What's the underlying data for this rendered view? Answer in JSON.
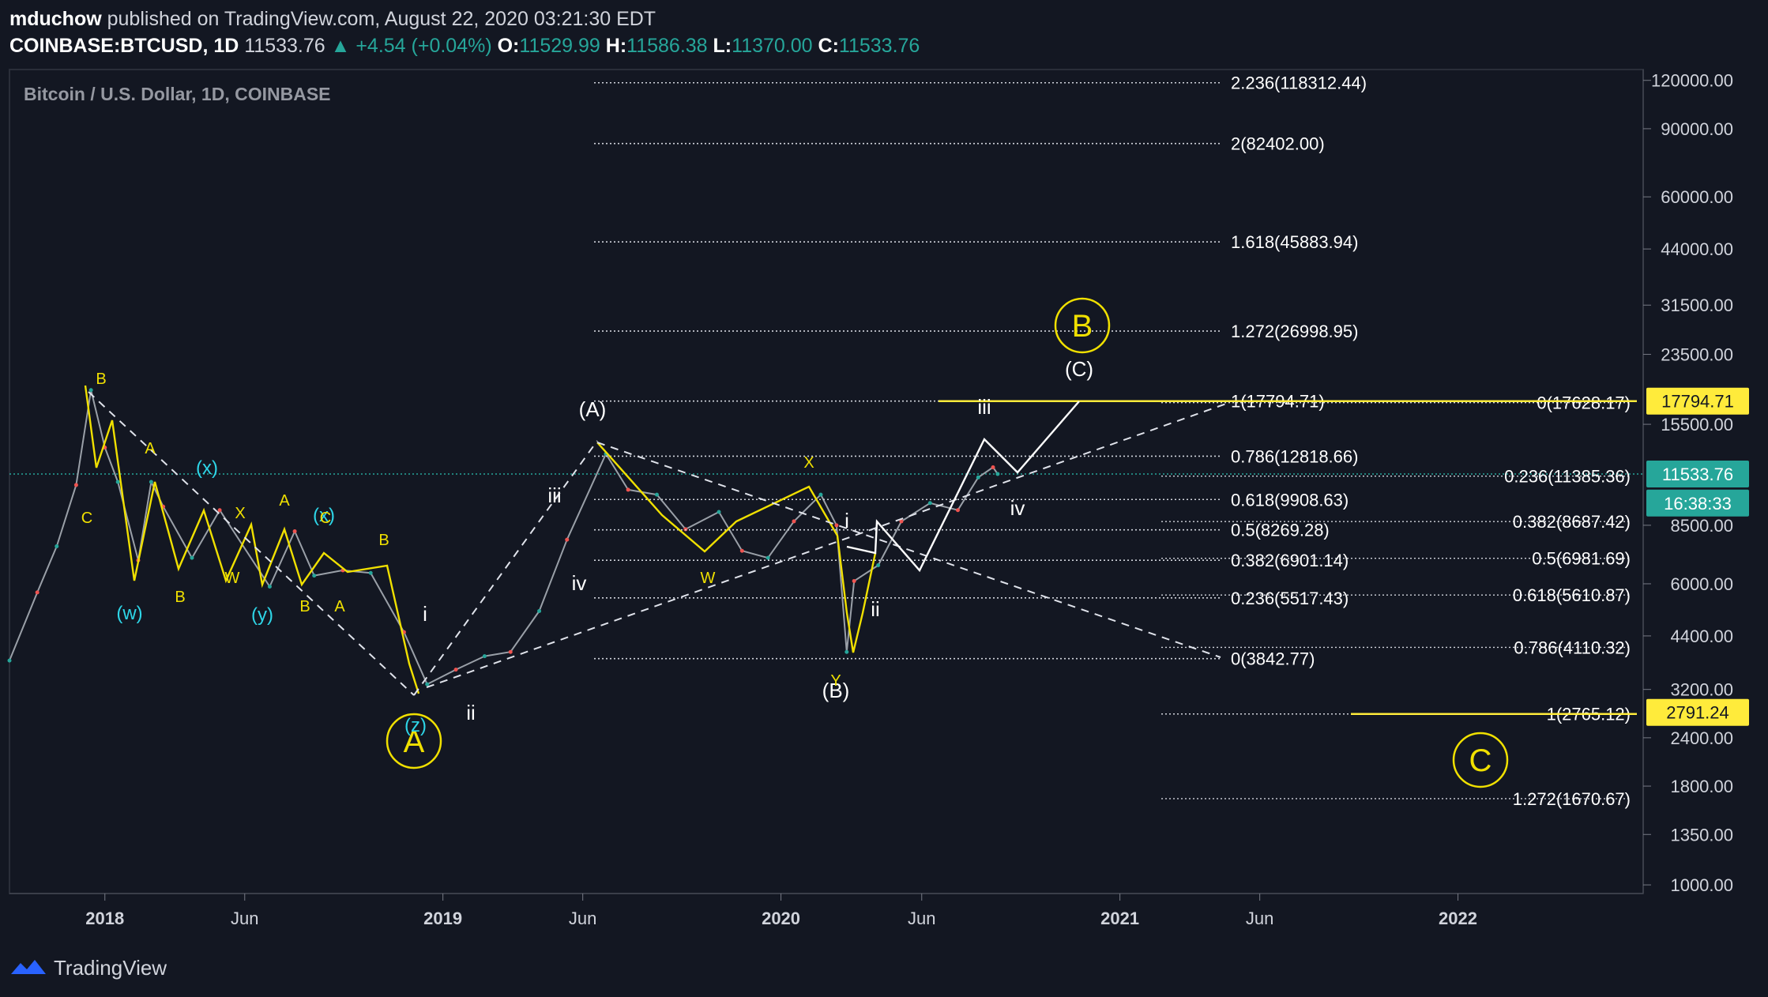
{
  "header": {
    "author": "mduchow",
    "published": "published on TradingView.com, August 22, 2020 03:21:30 EDT",
    "symbol": "COINBASE:BTCUSD, 1D",
    "last": "11533.76",
    "change": "▲ +4.54 (+0.04%)",
    "o_label": "O:",
    "o_value": "11529.99",
    "h_label": "H:",
    "h_value": "11586.38",
    "l_label": "L:",
    "l_value": "11370.00",
    "c_label": "C:",
    "c_value": "11533.76"
  },
  "legend": "Bitcoin / U.S. Dollar, 1D, COINBASE",
  "footer": {
    "brand": "TradingView"
  },
  "colors": {
    "background": "#131722",
    "wave_yellow": "#f0e000",
    "wave_cyan": "#2ed6e8",
    "teal": "#26a69a",
    "highlight": "#ffeb3b"
  },
  "chart_data": {
    "type": "line",
    "title": "Bitcoin / U.S. Dollar, 1D, COINBASE",
    "scale": "log",
    "ylim": [
      950,
      128000
    ],
    "xlim": [
      "2017-09-20",
      "2022-07-20"
    ],
    "x_ticks": [
      "2018",
      "Jun",
      "2019",
      "Jun",
      "2020",
      "Jun",
      "2021",
      "Jun",
      "2022"
    ],
    "x_tick_dates": [
      "2018-01-01",
      "2018-06-01",
      "2019-01-01",
      "2019-06-01",
      "2020-01-01",
      "2020-06-01",
      "2021-01-01",
      "2021-06-01",
      "2022-01-01"
    ],
    "y_ticks": [
      "120000.00",
      "90000.00",
      "60000.00",
      "44000.00",
      "31500.00",
      "23500.00",
      "15500.00",
      "8500.00",
      "6000.00",
      "4400.00",
      "3200.00",
      "2400.00",
      "1800.00",
      "1350.00",
      "1000.00"
    ],
    "y_tick_values": [
      120000,
      90000,
      60000,
      44000,
      31500,
      23500,
      15500,
      8500,
      6000,
      4400,
      3200,
      2400,
      1800,
      1350,
      1000
    ],
    "price_tags": [
      {
        "label": "17794.71",
        "value": 17794.71,
        "style": "yellow"
      },
      {
        "label": "11533.76",
        "value": 11533.76,
        "style": "teal"
      },
      {
        "label": "16:38:33",
        "value": 9700,
        "style": "teal"
      },
      {
        "label": "2791.24",
        "value": 2791.24,
        "style": "yellow"
      }
    ],
    "price_series": {
      "name": "BTCUSD",
      "dates": [
        "2017-09-20",
        "2017-10-20",
        "2017-11-10",
        "2017-12-01",
        "2017-12-17",
        "2018-01-01",
        "2018-01-15",
        "2018-02-06",
        "2018-02-20",
        "2018-03-05",
        "2018-04-05",
        "2018-05-05",
        "2018-06-28",
        "2018-07-25",
        "2018-08-15",
        "2018-09-15",
        "2018-10-15",
        "2018-11-20",
        "2018-12-15",
        "2019-01-15",
        "2019-02-15",
        "2019-03-15",
        "2019-04-15",
        "2019-05-15",
        "2019-06-26",
        "2019-07-20",
        "2019-08-20",
        "2019-09-20",
        "2019-10-26",
        "2019-11-20",
        "2019-12-18",
        "2020-01-15",
        "2020-02-13",
        "2020-03-01",
        "2020-03-12",
        "2020-03-20",
        "2020-04-15",
        "2020-05-10",
        "2020-06-10",
        "2020-07-10",
        "2020-08-01",
        "2020-08-17",
        "2020-08-22"
      ],
      "close": [
        3800,
        5700,
        7500,
        10800,
        19000,
        13500,
        11000,
        6900,
        11000,
        9500,
        7000,
        9300,
        5900,
        8200,
        6300,
        6500,
        6400,
        4500,
        3300,
        3600,
        3900,
        4000,
        5100,
        7800,
        13000,
        10500,
        10200,
        8300,
        9200,
        7300,
        7000,
        8700,
        10200,
        8500,
        4000,
        6100,
        6700,
        8700,
        9700,
        9300,
        11300,
        12000,
        11533.76
      ]
    },
    "fib_levels": [
      {
        "label": "2.236(118312.44)",
        "value": 118312.44
      },
      {
        "label": "2(82402.00)",
        "value": 82402.0
      },
      {
        "label": "1.618(45883.94)",
        "value": 45883.94
      },
      {
        "label": "1.272(26998.95)",
        "value": 26998.95
      },
      {
        "label": "1(17794.71)",
        "value": 17794.71
      },
      {
        "label": "0.786(12818.66)",
        "value": 12818.66
      },
      {
        "label": "0.618(9908.63)",
        "value": 9908.63
      },
      {
        "label": "0.5(8269.28)",
        "value": 8269.28
      },
      {
        "label": "0.382(6901.14)",
        "value": 6901.14
      },
      {
        "label": "0.236(5517.43)",
        "value": 5517.43
      },
      {
        "label": "0(3842.77)",
        "value": 3842.77
      }
    ],
    "fib_levels_right": [
      {
        "label": "0(17628.17)",
        "value": 17628.17
      },
      {
        "label": "0.236(11385.36)",
        "value": 11385.36
      },
      {
        "label": "0.382(8687.42)",
        "value": 8687.42
      },
      {
        "label": "0.5(6981.69)",
        "value": 6981.69
      },
      {
        "label": "0.618(5610.87)",
        "value": 5610.87
      },
      {
        "label": "0.786(4110.32)",
        "value": 4110.32
      },
      {
        "label": "1(2765.12)",
        "value": 2765.12
      },
      {
        "label": "1.272(1670.67)",
        "value": 1670.67
      }
    ],
    "wave_labels_primary": [
      "A",
      "B",
      "C"
    ],
    "wave_labels_intermediate": [
      "(A)",
      "(B)",
      "(C)"
    ],
    "wave_labels_minor": [
      "i",
      "ii",
      "iii",
      "iv",
      "i",
      "ii",
      "iii",
      "iv"
    ],
    "wave_labels_sub_cyan": [
      "(w)",
      "(x)",
      "(y)",
      "(x)",
      "(z)"
    ],
    "wave_labels_sub_yellow": [
      "B",
      "A",
      "C",
      "B",
      "X",
      "W",
      "A",
      "C",
      "B",
      "A",
      "B",
      "X",
      "W",
      "Y"
    ],
    "annotations": [
      "mduchow"
    ]
  }
}
